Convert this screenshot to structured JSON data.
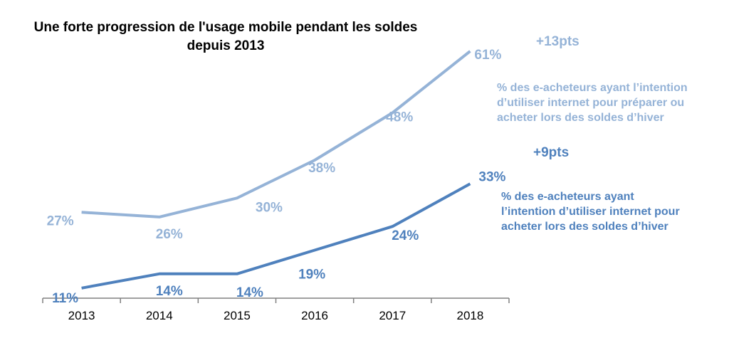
{
  "chart_data": {
    "type": "line",
    "title": [
      "Une forte progression de l'usage mobile pendant les soldes",
      "depuis 2013"
    ],
    "categories": [
      "2013",
      "2014",
      "2015",
      "2016",
      "2017",
      "2018"
    ],
    "ylim": [
      0,
      70
    ],
    "grid": false,
    "series": [
      {
        "name": "% des e-acheteurs ayant l’intention d’utiliser internet pour préparer ou acheter lors des soldes d’hiver",
        "legend_lines": [
          "% des e-acheteurs ayant l’intention",
          "d’utiliser internet pour préparer ou",
          "acheter lors des soldes d’hiver"
        ],
        "values": [
          27,
          26,
          30,
          38,
          48,
          61
        ],
        "labels": [
          "27%",
          "26%",
          "30%",
          "38%",
          "48%",
          "61%"
        ],
        "delta": "+13pts",
        "color": "#95B3D7"
      },
      {
        "name": "% des e-acheteurs ayant l’intention d’utiliser internet pour acheter lors des soldes d’hiver",
        "legend_lines": [
          "% des e-acheteurs ayant",
          "l’intention d’utiliser internet pour",
          "acheter lors des soldes d’hiver"
        ],
        "values": [
          11,
          14,
          14,
          19,
          24,
          33
        ],
        "labels": [
          "11%",
          "14%",
          "14%",
          "19%",
          "24%",
          "33%"
        ],
        "delta": "+9pts",
        "color": "#4F81BD"
      }
    ]
  }
}
